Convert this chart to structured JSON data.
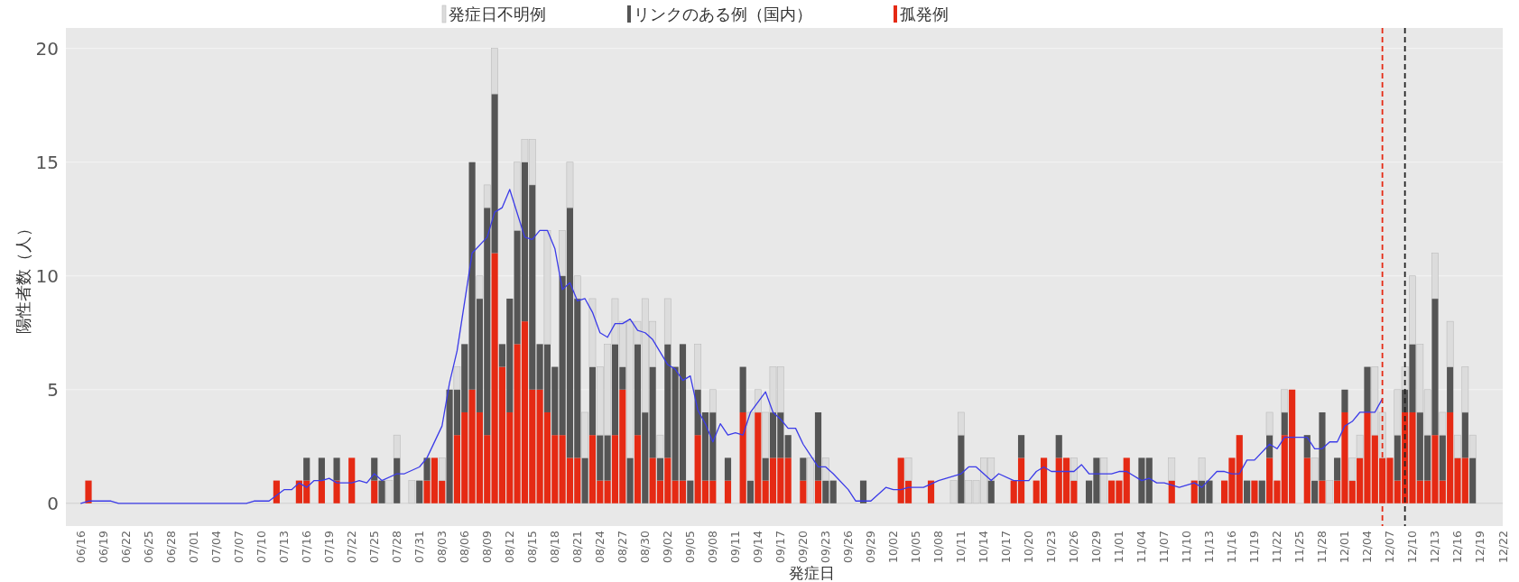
{
  "chart_data": {
    "type": "bar",
    "stacked": true,
    "xlabel": "発症日",
    "ylabel": "陽性者数（人）",
    "legend": "top",
    "grid": "y",
    "x": [
      "--06-16",
      "--06-17",
      "--06-18",
      "--06-19",
      "--06-20",
      "--06-21",
      "--06-22",
      "--06-23",
      "--06-24",
      "--06-25",
      "--06-26",
      "--06-27",
      "--06-28",
      "--06-29",
      "--06-30",
      "--07-01",
      "--07-02",
      "--07-03",
      "--07-04",
      "--07-05",
      "--07-06",
      "--07-07",
      "--07-08",
      "--07-09",
      "--07-10",
      "--07-11",
      "--07-12",
      "--07-13",
      "--07-14",
      "--07-15",
      "--07-16",
      "--07-17",
      "--07-18",
      "--07-19",
      "--07-20",
      "--07-21",
      "--07-22",
      "--07-23",
      "--07-24",
      "--07-25",
      "--07-26",
      "--07-27",
      "--07-28",
      "--07-29",
      "--07-30",
      "--07-31",
      "--08-01",
      "--08-02",
      "--08-03",
      "--08-04",
      "--08-05",
      "--08-06",
      "--08-07",
      "--08-08",
      "--08-09",
      "--08-10",
      "--08-11",
      "--08-12",
      "--08-13",
      "--08-14",
      "--08-15",
      "--08-16",
      "--08-17",
      "--08-18",
      "--08-19",
      "--08-20",
      "--08-21",
      "--08-22",
      "--08-23",
      "--08-24",
      "--08-25",
      "--08-26",
      "--08-27",
      "--08-28",
      "--08-29",
      "--08-30",
      "--08-31",
      "--09-01",
      "--09-02",
      "--09-03",
      "--09-04",
      "--09-05",
      "--09-06",
      "--09-07",
      "--09-08",
      "--09-09",
      "--09-10",
      "--09-11",
      "--09-12",
      "--09-13",
      "--09-14",
      "--09-15",
      "--09-16",
      "--09-17",
      "--09-18",
      "--09-19",
      "--09-20",
      "--09-21",
      "--09-22",
      "--09-23",
      "--09-24",
      "--09-25",
      "--09-26",
      "--09-27",
      "--09-28",
      "--09-29",
      "--09-30",
      "--10-01",
      "--10-02",
      "--10-03",
      "--10-04",
      "--10-05",
      "--10-06",
      "--10-07",
      "--10-08",
      "--10-09",
      "--10-10",
      "--10-11",
      "--10-12",
      "--10-13",
      "--10-14",
      "--10-15",
      "--10-16",
      "--10-17",
      "--10-18",
      "--10-19",
      "--10-20",
      "--10-21",
      "--10-22",
      "--10-23",
      "--10-24",
      "--10-25",
      "--10-26",
      "--10-27",
      "--10-28",
      "--10-29",
      "--10-30",
      "--10-31",
      "--11-01",
      "--11-02",
      "--11-03",
      "--11-04",
      "--11-05",
      "--11-06",
      "--11-07",
      "--11-08",
      "--11-09",
      "--11-10",
      "--11-11",
      "--11-12",
      "--11-13",
      "--11-14",
      "--11-15",
      "--11-16",
      "--11-17",
      "--11-18",
      "--11-19",
      "--11-20",
      "--11-21",
      "--11-22",
      "--11-23",
      "--11-24",
      "--11-25",
      "--11-26",
      "--11-27",
      "--11-28",
      "--11-29",
      "--11-30",
      "--12-01",
      "--12-02",
      "--12-03",
      "--12-04",
      "--12-05",
      "--12-06",
      "--12-07",
      "--12-08",
      "--12-09",
      "--12-10",
      "--12-11",
      "--12-12",
      "--12-13",
      "--12-14",
      "--12-15",
      "--12-16",
      "--12-17",
      "--12-18",
      "--12-19",
      "--12-20",
      "--12-21",
      "--12-22"
    ],
    "series": [
      {
        "name": "孤発例",
        "type": "bar",
        "color": "#e52a14",
        "values": [
          0,
          1,
          0,
          0,
          0,
          0,
          0,
          0,
          0,
          0,
          0,
          0,
          0,
          0,
          0,
          0,
          0,
          0,
          0,
          0,
          0,
          0,
          0,
          0,
          0,
          0,
          1,
          0,
          0,
          1,
          1,
          0,
          1,
          0,
          1,
          0,
          2,
          0,
          0,
          1,
          0,
          0,
          0,
          0,
          0,
          0,
          1,
          2,
          1,
          0,
          3,
          4,
          5,
          4,
          3,
          11,
          6,
          4,
          7,
          8,
          5,
          5,
          4,
          3,
          3,
          2,
          2,
          0,
          3,
          1,
          1,
          3,
          5,
          0,
          3,
          0,
          2,
          1,
          2,
          1,
          1,
          0,
          3,
          1,
          1,
          0,
          1,
          0,
          4,
          0,
          4,
          1,
          2,
          2,
          2,
          0,
          1,
          0,
          1,
          0,
          0,
          0,
          0,
          0,
          0,
          0,
          0,
          0,
          0,
          2,
          1,
          0,
          0,
          1,
          0,
          0,
          0,
          0,
          0,
          0,
          0,
          0,
          0,
          0,
          1,
          2,
          0,
          1,
          2,
          0,
          2,
          2,
          1,
          0,
          0,
          0,
          0,
          1,
          1,
          2,
          0,
          0,
          0,
          0,
          0,
          1,
          0,
          0,
          1,
          0,
          0,
          0,
          1,
          2,
          3,
          0,
          1,
          0,
          2,
          1,
          3,
          5,
          0,
          2,
          0,
          1,
          0,
          1,
          4,
          1,
          2,
          4,
          3,
          2,
          2,
          1,
          4,
          4,
          1,
          1,
          3,
          1,
          4,
          2,
          2,
          0,
          0,
          0,
          0,
          0
        ]
      },
      {
        "name": "リンクのある例（国内）",
        "type": "bar",
        "color": "#555555",
        "values": [
          0,
          0,
          0,
          0,
          0,
          0,
          0,
          0,
          0,
          0,
          0,
          0,
          0,
          0,
          0,
          0,
          0,
          0,
          0,
          0,
          0,
          0,
          0,
          0,
          0,
          0,
          0,
          0,
          0,
          0,
          1,
          0,
          1,
          0,
          1,
          0,
          0,
          0,
          0,
          1,
          1,
          0,
          2,
          0,
          0,
          1,
          1,
          0,
          0,
          5,
          2,
          3,
          10,
          5,
          10,
          7,
          1,
          5,
          5,
          7,
          9,
          2,
          3,
          3,
          7,
          11,
          7,
          2,
          3,
          2,
          2,
          4,
          1,
          2,
          4,
          4,
          4,
          1,
          5,
          5,
          6,
          1,
          2,
          3,
          3,
          0,
          1,
          0,
          2,
          1,
          0,
          1,
          2,
          2,
          1,
          0,
          1,
          0,
          3,
          1,
          1,
          0,
          0,
          0,
          1,
          0,
          0,
          0,
          0,
          0,
          0,
          0,
          0,
          0,
          0,
          0,
          0,
          3,
          0,
          0,
          0,
          1,
          0,
          0,
          0,
          1,
          0,
          0,
          0,
          0,
          1,
          0,
          0,
          0,
          1,
          2,
          0,
          0,
          0,
          0,
          0,
          2,
          2,
          0,
          0,
          0,
          0,
          0,
          0,
          1,
          1,
          0,
          0,
          0,
          0,
          1,
          0,
          1,
          1,
          0,
          1,
          0,
          0,
          1,
          1,
          3,
          0,
          1,
          1,
          0,
          0,
          2,
          0,
          0,
          0,
          2,
          1,
          3,
          3,
          2,
          6,
          2,
          2,
          0,
          2,
          2,
          0,
          0,
          0,
          0
        ]
      },
      {
        "name": "発症日不明例",
        "type": "bar",
        "color": "#dcdcdc",
        "values": [
          0,
          0,
          0,
          0,
          0,
          0,
          0,
          0,
          0,
          0,
          0,
          0,
          0,
          0,
          0,
          0,
          0,
          0,
          0,
          0,
          0,
          0,
          0,
          0,
          0,
          0,
          0,
          0,
          0,
          0,
          0,
          0,
          0,
          0,
          0,
          0,
          0,
          0,
          0,
          0,
          0,
          1,
          1,
          0,
          1,
          0,
          0,
          0,
          1,
          0,
          1,
          0,
          0,
          1,
          1,
          2,
          0,
          0,
          3,
          1,
          2,
          0,
          5,
          0,
          2,
          2,
          1,
          2,
          3,
          3,
          4,
          2,
          2,
          6,
          1,
          5,
          2,
          1,
          2,
          0,
          0,
          0,
          2,
          0,
          1,
          0,
          0,
          0,
          0,
          3,
          1,
          2,
          2,
          2,
          0,
          0,
          0,
          2,
          0,
          1,
          0,
          0,
          0,
          0,
          0,
          0,
          0,
          0,
          0,
          0,
          1,
          0,
          0,
          0,
          0,
          0,
          1,
          1,
          1,
          1,
          2,
          1,
          0,
          0,
          0,
          0,
          0,
          0,
          0,
          0,
          0,
          0,
          1,
          0,
          0,
          0,
          2,
          0,
          0,
          0,
          0,
          0,
          0,
          0,
          0,
          1,
          0,
          0,
          0,
          1,
          0,
          0,
          0,
          0,
          0,
          0,
          0,
          0,
          1,
          0,
          1,
          0,
          0,
          0,
          1,
          0,
          1,
          0,
          0,
          1,
          1,
          0,
          3,
          2,
          0,
          2,
          1,
          3,
          3,
          2,
          2,
          1,
          2,
          1,
          2,
          1,
          0,
          0,
          0,
          0
        ]
      },
      {
        "type": "line",
        "color": "#3b3be8",
        "x": [
          "--06-16",
          "--06-17",
          "--06-20",
          "--06-21",
          "--07-08",
          "--07-09",
          "--07-11",
          "--07-13",
          "--07-14",
          "--07-15",
          "--07-16",
          "--07-17",
          "--07-18",
          "--07-19",
          "--07-20",
          "--07-22",
          "--07-23",
          "--07-24",
          "--07-25",
          "--07-26",
          "--07-28",
          "--07-29",
          "--07-31",
          "--08-01",
          "--08-03",
          "--08-04",
          "--08-05",
          "--08-07",
          "--08-09",
          "--08-10",
          "--08-11",
          "--08-12",
          "--08-14",
          "--08-15",
          "--08-16",
          "--08-17",
          "--08-18",
          "--08-19",
          "--08-20",
          "--08-21",
          "--08-22",
          "--08-23",
          "--08-24",
          "--08-25",
          "--08-26",
          "--08-27",
          "--08-28",
          "--08-29",
          "--08-30",
          "--08-31",
          "--09-02",
          "--09-03",
          "--09-04",
          "--09-05",
          "--09-06",
          "--09-07",
          "--09-08",
          "--09-09",
          "--09-10",
          "--09-11",
          "--09-12",
          "--09-13",
          "--09-15",
          "--09-16",
          "--09-17",
          "--09-18",
          "--09-19",
          "--09-20",
          "--09-21",
          "--09-22",
          "--09-23",
          "--09-24",
          "--09-26",
          "--09-27",
          "--09-29",
          "--10-01",
          "--10-02",
          "--10-03",
          "--10-04",
          "--10-06",
          "--10-08",
          "--10-11",
          "--10-12",
          "--10-13",
          "--10-14",
          "--10-15",
          "--10-16",
          "--10-18",
          "--10-20",
          "--10-21",
          "--10-22",
          "--10-23",
          "--10-26",
          "--10-27",
          "--10-28",
          "--10-31",
          "--11-01",
          "--11-02",
          "--11-04",
          "--11-05",
          "--11-06",
          "--11-07",
          "--11-09",
          "--11-11",
          "--11-12",
          "--11-14",
          "--11-15",
          "--11-16",
          "--11-17",
          "--11-18",
          "--11-19",
          "--11-21",
          "--11-22",
          "--11-23",
          "--11-25",
          "--11-26",
          "--11-27",
          "--11-28",
          "--11-29",
          "--11-30",
          "--12-01",
          "--12-02",
          "--12-03",
          "--12-05",
          "--12-06"
        ],
        "values": [
          0,
          0.1,
          0.1,
          0,
          0,
          0.1,
          0.1,
          0.6,
          0.6,
          0.9,
          0.7,
          1,
          1,
          1.1,
          0.9,
          0.9,
          1,
          0.9,
          1.3,
          1,
          1.3,
          1.3,
          1.6,
          2,
          3.4,
          5.3,
          6.7,
          11,
          11.7,
          12.8,
          13,
          13.8,
          11.7,
          11.6,
          12,
          12,
          11.2,
          9.4,
          9.7,
          8.9,
          9,
          8.4,
          7.5,
          7.3,
          7.9,
          7.9,
          8.1,
          7.6,
          7.5,
          7.2,
          6.1,
          5.9,
          5.4,
          5.6,
          4.1,
          3.5,
          2.7,
          3.5,
          3,
          3.1,
          3,
          4,
          4.9,
          4,
          3.7,
          3.3,
          3.3,
          2.6,
          2.1,
          1.6,
          1.6,
          1.3,
          0.6,
          0.1,
          0.1,
          0.7,
          0.6,
          0.6,
          0.7,
          0.7,
          1,
          1.3,
          1.6,
          1.6,
          1.3,
          1,
          1.3,
          1,
          1,
          1.4,
          1.6,
          1.4,
          1.4,
          1.7,
          1.3,
          1.3,
          1.4,
          1.4,
          1,
          1.1,
          0.9,
          0.9,
          0.7,
          0.9,
          0.7,
          1.4,
          1.4,
          1.3,
          1.3,
          1.9,
          1.9,
          2.6,
          2.4,
          2.9,
          2.9,
          2.9,
          2.4,
          2.4,
          2.7,
          2.7,
          3.4,
          3.6,
          4,
          4,
          4.6
        ]
      }
    ],
    "ref_lines": [
      {
        "axis": "x",
        "value": "--12-06",
        "color": "#e52a14",
        "line_style": "dashed"
      },
      {
        "axis": "x",
        "value": "--12-09",
        "color": "#222222",
        "line_style": "dashed"
      }
    ],
    "xlim": [
      "--06-14",
      "--12-22"
    ],
    "xticks": [
      {
        "value": "--06-16",
        "label": "06/16"
      },
      {
        "value": "--06-19",
        "label": "06/19"
      },
      {
        "value": "--06-22",
        "label": "06/22"
      },
      {
        "value": "--06-25",
        "label": "06/25"
      },
      {
        "value": "--06-28",
        "label": "06/28"
      },
      {
        "value": "--07-01",
        "label": "07/01"
      },
      {
        "value": "--07-04",
        "label": "07/04"
      },
      {
        "value": "--07-07",
        "label": "07/07"
      },
      {
        "value": "--07-10",
        "label": "07/10"
      },
      {
        "value": "--07-13",
        "label": "07/13"
      },
      {
        "value": "--07-16",
        "label": "07/16"
      },
      {
        "value": "--07-19",
        "label": "07/19"
      },
      {
        "value": "--07-22",
        "label": "07/22"
      },
      {
        "value": "--07-25",
        "label": "07/25"
      },
      {
        "value": "--07-28",
        "label": "07/28"
      },
      {
        "value": "--07-31",
        "label": "07/31"
      },
      {
        "value": "--08-03",
        "label": "08/03"
      },
      {
        "value": "--08-06",
        "label": "08/06"
      },
      {
        "value": "--08-09",
        "label": "08/09"
      },
      {
        "value": "--08-12",
        "label": "08/12"
      },
      {
        "value": "--08-15",
        "label": "08/15"
      },
      {
        "value": "--08-18",
        "label": "08/18"
      },
      {
        "value": "--08-21",
        "label": "08/21"
      },
      {
        "value": "--08-24",
        "label": "08/24"
      },
      {
        "value": "--08-27",
        "label": "08/27"
      },
      {
        "value": "--08-30",
        "label": "08/30"
      },
      {
        "value": "--09-02",
        "label": "09/02"
      },
      {
        "value": "--09-05",
        "label": "09/05"
      },
      {
        "value": "--09-08",
        "label": "09/08"
      },
      {
        "value": "--09-11",
        "label": "09/11"
      },
      {
        "value": "--09-14",
        "label": "09/14"
      },
      {
        "value": "--09-17",
        "label": "09/17"
      },
      {
        "value": "--09-20",
        "label": "09/20"
      },
      {
        "value": "--09-23",
        "label": "09/23"
      },
      {
        "value": "--09-26",
        "label": "09/26"
      },
      {
        "value": "--09-29",
        "label": "09/29"
      },
      {
        "value": "--10-02",
        "label": "10/02"
      },
      {
        "value": "--10-05",
        "label": "10/05"
      },
      {
        "value": "--10-08",
        "label": "10/08"
      },
      {
        "value": "--10-11",
        "label": "10/11"
      },
      {
        "value": "--10-14",
        "label": "10/14"
      },
      {
        "value": "--10-17",
        "label": "10/17"
      },
      {
        "value": "--10-20",
        "label": "10/20"
      },
      {
        "value": "--10-23",
        "label": "10/23"
      },
      {
        "value": "--10-26",
        "label": "10/26"
      },
      {
        "value": "--10-29",
        "label": "10/29"
      },
      {
        "value": "--11-01",
        "label": "11/01"
      },
      {
        "value": "--11-04",
        "label": "11/04"
      },
      {
        "value": "--11-07",
        "label": "11/07"
      },
      {
        "value": "--11-10",
        "label": "11/10"
      },
      {
        "value": "--11-13",
        "label": "11/13"
      },
      {
        "value": "--11-16",
        "label": "11/16"
      },
      {
        "value": "--11-19",
        "label": "11/19"
      },
      {
        "value": "--11-22",
        "label": "11/22"
      },
      {
        "value": "--11-25",
        "label": "11/25"
      },
      {
        "value": "--11-28",
        "label": "11/28"
      },
      {
        "value": "--12-01",
        "label": "12/01"
      },
      {
        "value": "--12-04",
        "label": "12/04"
      },
      {
        "value": "--12-07",
        "label": "12/07"
      },
      {
        "value": "--12-10",
        "label": "12/10"
      },
      {
        "value": "--12-13",
        "label": "12/13"
      },
      {
        "value": "--12-16",
        "label": "12/16"
      },
      {
        "value": "--12-19",
        "label": "12/19"
      },
      {
        "value": "--12-22",
        "label": "12/22"
      }
    ],
    "ylim": [
      -1,
      20.9
    ],
    "yticks": [
      0,
      5,
      10,
      15,
      20
    ]
  }
}
